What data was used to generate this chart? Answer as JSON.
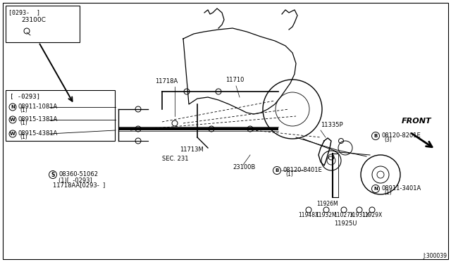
{
  "bg_color": "#ffffff",
  "border_color": "#000000",
  "diagram_number": "J:300039",
  "top_box_label": "[0293-  ]",
  "top_box_part": "23100C",
  "left_box_label": "[ -0293]",
  "left_box_parts": [
    {
      "symbol": "N",
      "part": "08911-1081A",
      "qty": "(1)"
    },
    {
      "symbol": "W",
      "part": "08915-1381A",
      "qty": "(1)"
    }
  ],
  "below_box_part": {
    "symbol": "W",
    "part": "08915-4381A",
    "qty": "(1)"
  },
  "bottom_s_part": "08360-51062",
  "bottom_s_qty": "(1)[  -0293]",
  "bottom_extra": "11718AA[0293-  ]",
  "label_11718A": "11718A",
  "label_11710": "11710",
  "label_11713M": "11713M",
  "label_sec231": "SEC. 231",
  "label_23100B": "23100B",
  "label_11335P": "11335P",
  "label_11926M": "11926M",
  "label_11948X": "11948X",
  "label_11932M": "11932M",
  "label_11027X": "11027X",
  "label_11931X": "11931X",
  "label_11929X": "11929X",
  "label_11925U": "11925U",
  "right_e1_sym": "B",
  "right_e1_part": "08120-8401E",
  "right_e1_qty": "(1)",
  "right_e2_sym": "B",
  "right_e2_part": "08120-8201E",
  "right_e2_qty": "(3)",
  "right_n_sym": "N",
  "right_n_part": "08911-3401A",
  "right_n_qty": "(1)",
  "front_label": "FRONT"
}
